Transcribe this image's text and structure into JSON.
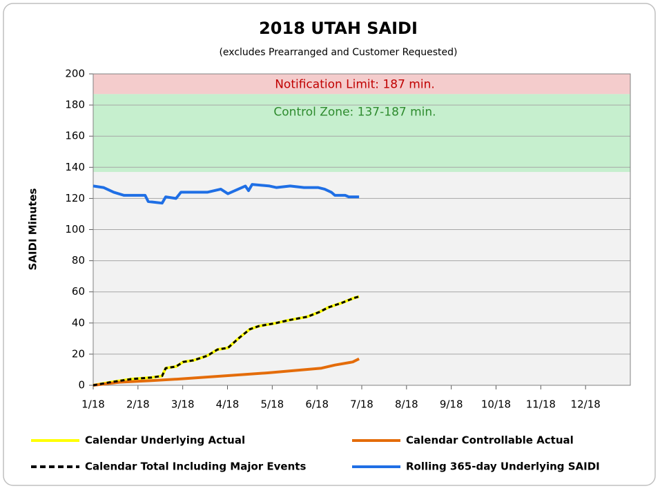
{
  "chart_data": {
    "type": "line",
    "title": "2018 UTAH SAIDI",
    "subtitle": "(excludes Prearranged and Customer Requested)",
    "y_label": "SAIDI Minutes",
    "xlim": [
      1,
      13
    ],
    "xticks": [
      {
        "value": 1,
        "label": "1/18"
      },
      {
        "value": 2,
        "label": "2/18"
      },
      {
        "value": 3,
        "label": "3/18"
      },
      {
        "value": 4,
        "label": "4/18"
      },
      {
        "value": 5,
        "label": "5/18"
      },
      {
        "value": 6,
        "label": "6/18"
      },
      {
        "value": 7,
        "label": "7/18"
      },
      {
        "value": 8,
        "label": "8/18"
      },
      {
        "value": 9,
        "label": "9/18"
      },
      {
        "value": 10,
        "label": "10/18"
      },
      {
        "value": 11,
        "label": "11/18"
      },
      {
        "value": 12,
        "label": "12/18"
      }
    ],
    "ylim": [
      0,
      200
    ],
    "yticks": [
      0,
      20,
      40,
      60,
      80,
      100,
      120,
      140,
      160,
      180,
      200
    ],
    "grid": true,
    "bands": [
      {
        "from": 187,
        "to": 200,
        "color": "#f4cccc",
        "label": "Notification Limit:  187 min.",
        "label_color": "#c00000"
      },
      {
        "from": 137,
        "to": 187,
        "color": "#c6efce",
        "label": "Control Zone:  137-187 min.",
        "label_color": "#2e8b2e"
      }
    ],
    "legend": "bottom",
    "series": [
      {
        "name": "Calendar Underlying Actual",
        "color": "#ffff00",
        "style": "solid",
        "x": [
          1,
          1.39,
          1.85,
          2.31,
          2.54,
          2.62,
          2.85,
          3.01,
          3.24,
          3.55,
          3.78,
          4.01,
          4.24,
          4.5,
          4.7,
          5.09,
          5.4,
          5.78,
          6.05,
          6.25,
          6.56,
          6.82,
          6.94
        ],
        "values": [
          0,
          2,
          4,
          5,
          6,
          11,
          12,
          15,
          16,
          19,
          23,
          24,
          30,
          36,
          38,
          40,
          42,
          44,
          47,
          50,
          53,
          56,
          57
        ]
      },
      {
        "name": "Calendar Controllable Actual",
        "color": "#e46c0a",
        "style": "solid",
        "x": [
          1,
          1.6,
          2.3,
          2.9,
          3.4,
          3.9,
          4.4,
          4.9,
          5.3,
          5.7,
          6.1,
          6.4,
          6.8,
          6.94
        ],
        "values": [
          0,
          2,
          3,
          4,
          5,
          6,
          7,
          8,
          9,
          10,
          11,
          13,
          15,
          17
        ]
      },
      {
        "name": "Calendar Total Including Major Events",
        "color": "#000000",
        "style": "dashed",
        "x": [
          1,
          1.39,
          1.85,
          2.31,
          2.54,
          2.62,
          2.85,
          3.01,
          3.24,
          3.55,
          3.78,
          4.01,
          4.24,
          4.5,
          4.7,
          5.09,
          5.4,
          5.78,
          6.05,
          6.25,
          6.56,
          6.82,
          6.94
        ],
        "values": [
          0,
          2,
          4,
          5,
          6,
          11,
          12,
          15,
          16,
          19,
          23,
          24,
          30,
          36,
          38,
          40,
          42,
          44,
          47,
          50,
          53,
          56,
          57
        ]
      },
      {
        "name": "Rolling 365-day Underlying SAIDI",
        "color": "#1f6fe5",
        "style": "solid",
        "x": [
          1,
          1.23,
          1.46,
          1.69,
          2.16,
          2.23,
          2.54,
          2.62,
          2.85,
          2.96,
          3.55,
          3.85,
          4.01,
          4.24,
          4.4,
          4.47,
          4.55,
          4.94,
          5.09,
          5.4,
          5.71,
          6.02,
          6.17,
          6.32,
          6.4,
          6.63,
          6.71,
          6.94
        ],
        "values": [
          128,
          127,
          124,
          122,
          122,
          118,
          117,
          121,
          120,
          124,
          124,
          126,
          123,
          126,
          128,
          125,
          129,
          128,
          127,
          128,
          127,
          127,
          126,
          124,
          122,
          122,
          121,
          121
        ]
      }
    ]
  }
}
